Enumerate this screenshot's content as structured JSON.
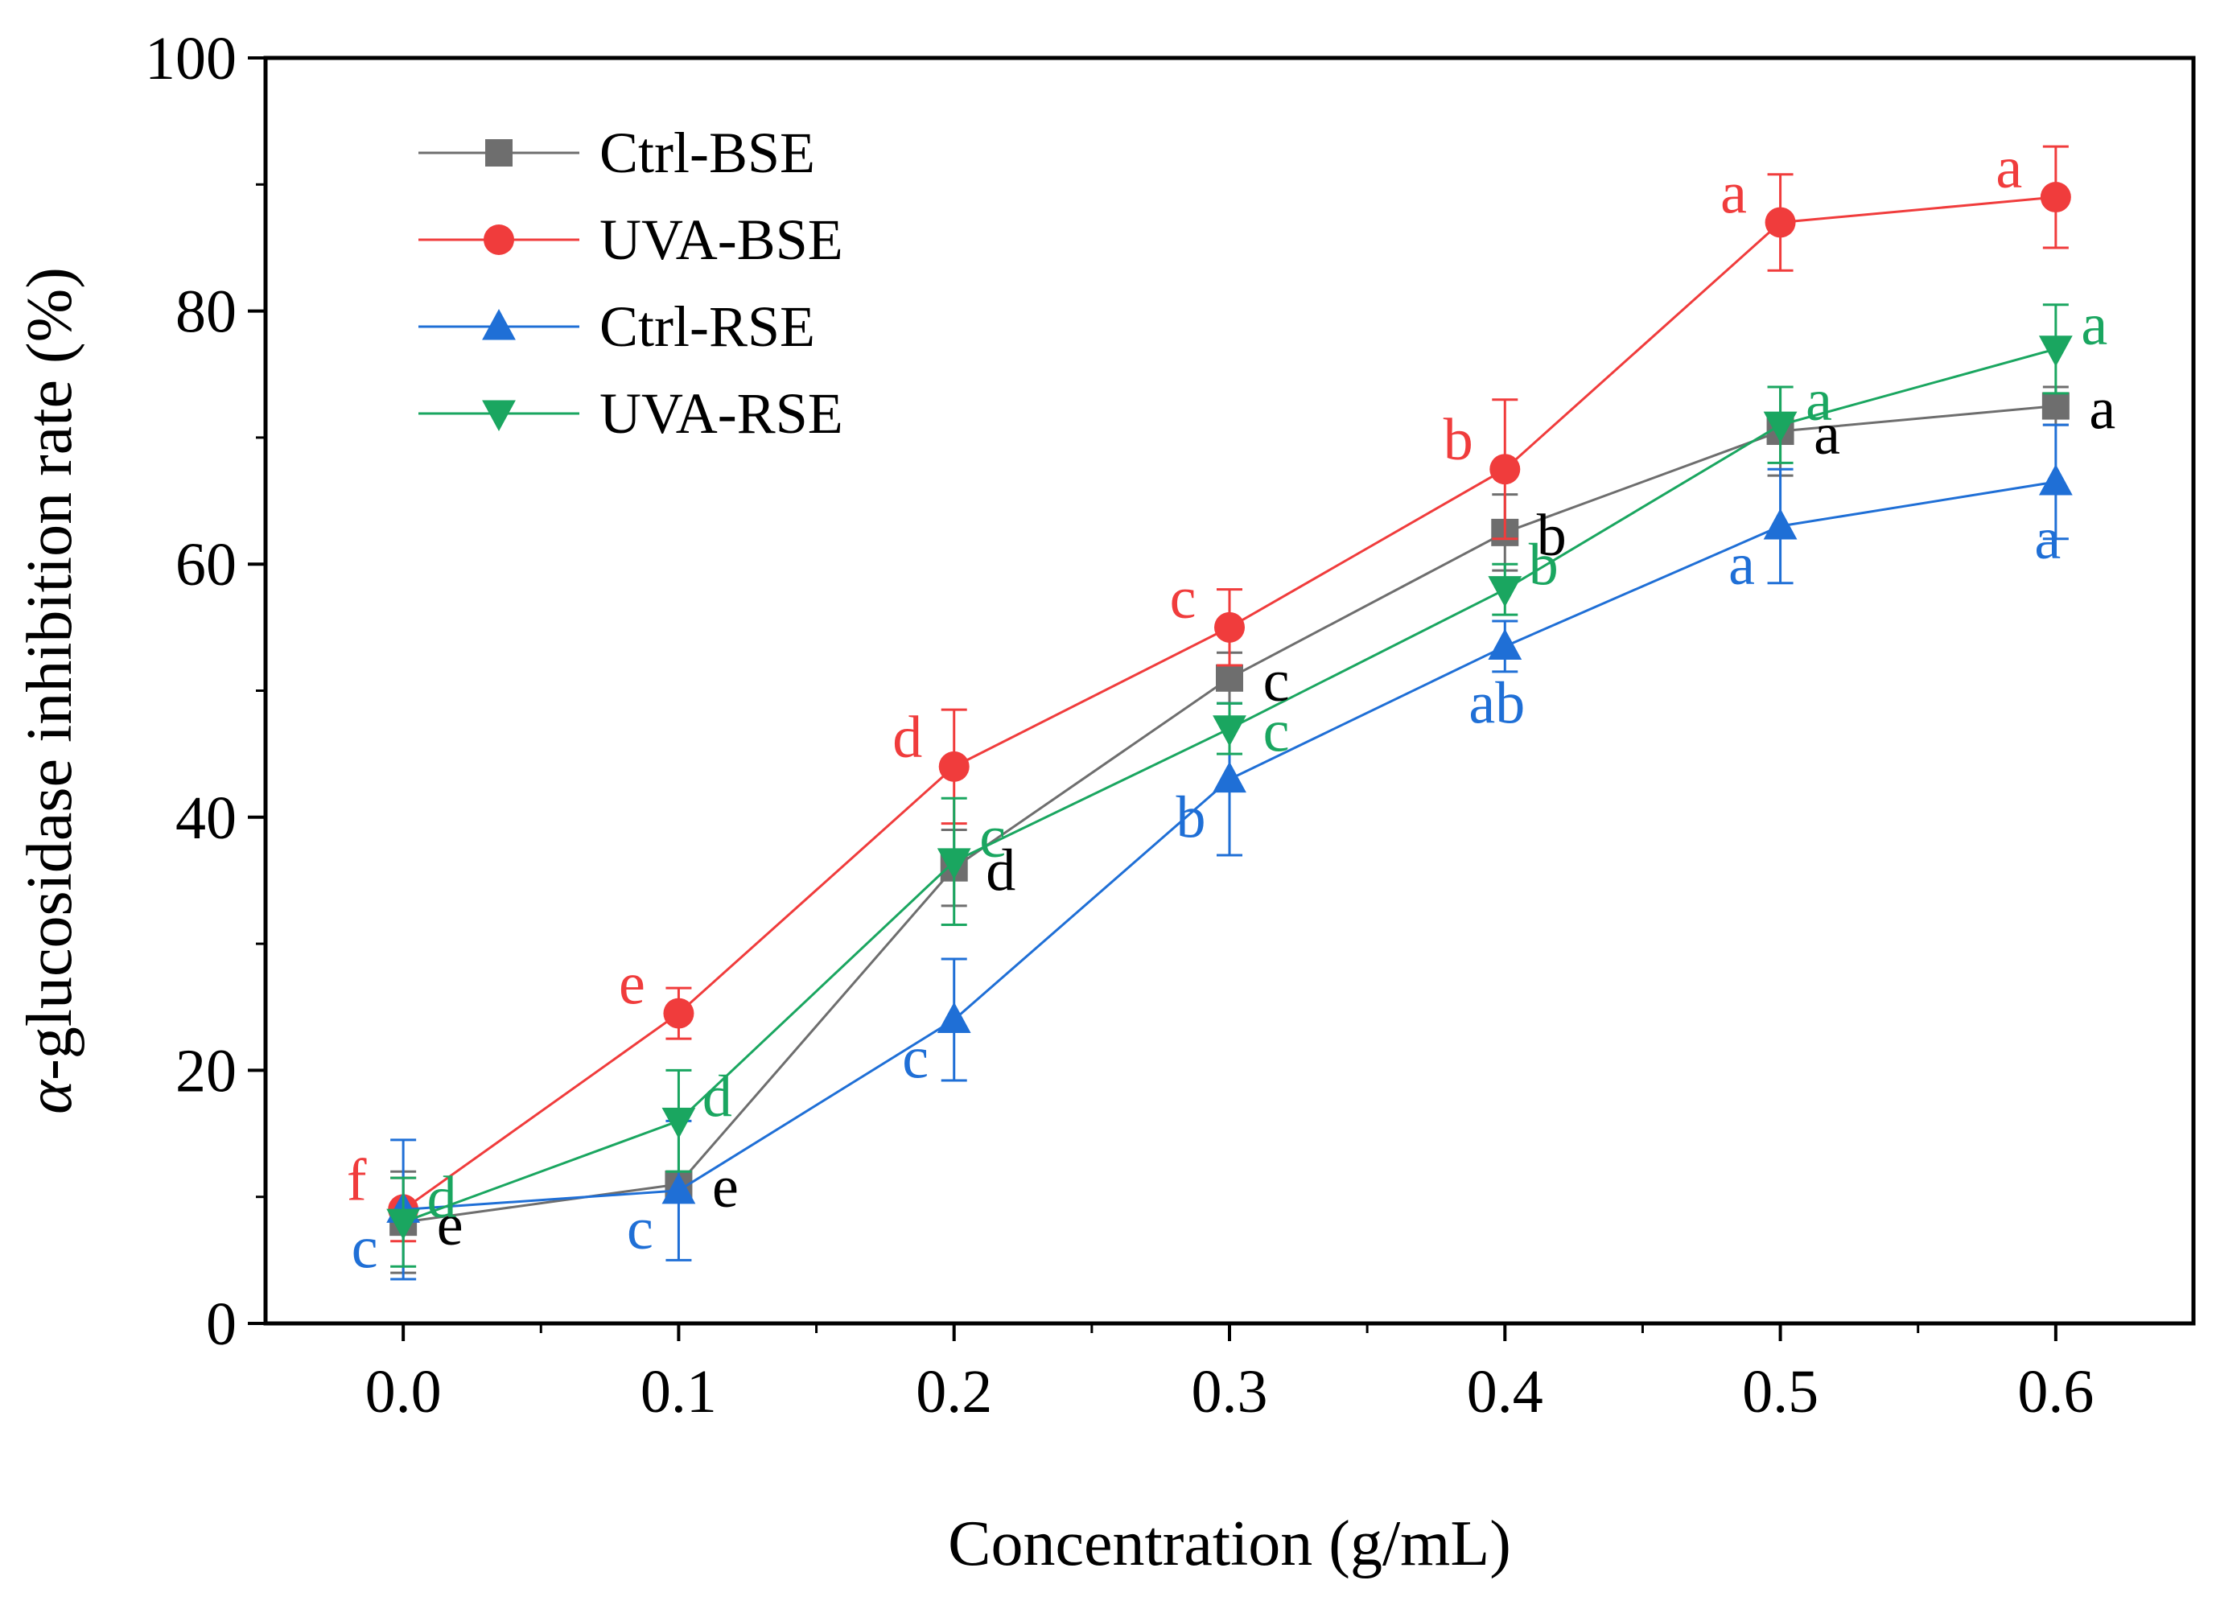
{
  "chart_data": {
    "type": "line",
    "xlabel": "Concentration (g/mL)",
    "ylabel_symbol": "α",
    "ylabel_text": "-glucosidase inhibition rate (%)",
    "xlim": [
      -0.05,
      0.65
    ],
    "ylim": [
      0,
      100
    ],
    "x_ticks": [
      0.0,
      0.1,
      0.2,
      0.3,
      0.4,
      0.5,
      0.6
    ],
    "x_tick_labels": [
      "0.0",
      "0.1",
      "0.2",
      "0.3",
      "0.4",
      "0.5",
      "0.6"
    ],
    "y_ticks": [
      0,
      20,
      40,
      60,
      80,
      100
    ],
    "y_tick_labels": [
      "0",
      "20",
      "40",
      "60",
      "80",
      "100"
    ],
    "legend_position": "top-left",
    "x": [
      0.0,
      0.1,
      0.2,
      0.3,
      0.4,
      0.5,
      0.6
    ],
    "series": [
      {
        "name": "Ctrl-BSE",
        "color": "#6e6e6e",
        "marker": "square",
        "values": [
          8.0,
          11.0,
          36.0,
          51.0,
          62.5,
          70.5,
          72.5
        ],
        "errors": [
          4.0,
          1.0,
          3.0,
          2.0,
          3.0,
          3.5,
          1.5
        ],
        "labels": [
          "e",
          "e",
          "d",
          "c",
          "b",
          "a",
          "a"
        ],
        "label_side": [
          "right",
          "right",
          "right",
          "right",
          "right",
          "right",
          "right"
        ]
      },
      {
        "name": "UVA-BSE",
        "color": "#f03c3c",
        "marker": "circle",
        "values": [
          9.0,
          24.5,
          44.0,
          55.0,
          67.5,
          87.0,
          89.0
        ],
        "errors": [
          2.5,
          2.0,
          4.5,
          3.0,
          5.5,
          3.8,
          4.0
        ],
        "labels": [
          "f",
          "e",
          "d",
          "c",
          "b",
          "a",
          "a"
        ],
        "label_side": [
          "upper-left",
          "upper-left",
          "upper-left",
          "upper-left",
          "upper-left",
          "upper-left",
          "upper-left"
        ]
      },
      {
        "name": "Ctrl-RSE",
        "color": "#1f6fd6",
        "marker": "triangle-up",
        "values": [
          9.0,
          10.5,
          24.0,
          43.0,
          53.5,
          63.0,
          66.5
        ],
        "errors": [
          5.5,
          5.5,
          4.8,
          6.0,
          2.0,
          4.5,
          4.5
        ],
        "labels": [
          "c",
          "c",
          "c",
          "b",
          "ab",
          "a",
          "a"
        ],
        "label_side": [
          "lower-left",
          "lower-left",
          "lower-left",
          "lower-left",
          "below",
          "lower-left",
          "below"
        ]
      },
      {
        "name": "UVA-RSE",
        "color": "#1aa660",
        "marker": "triangle-down",
        "values": [
          8.0,
          16.0,
          36.5,
          47.0,
          58.0,
          71.0,
          77.0
        ],
        "errors": [
          3.5,
          4.0,
          5.0,
          2.0,
          2.0,
          3.0,
          3.5
        ],
        "labels": [
          "d",
          "d",
          "c",
          "c",
          "b",
          "a",
          "a"
        ],
        "label_side": [
          "upper-right",
          "upper-right",
          "upper-right",
          "right",
          "upper-right",
          "upper-right",
          "upper-right"
        ]
      }
    ]
  }
}
